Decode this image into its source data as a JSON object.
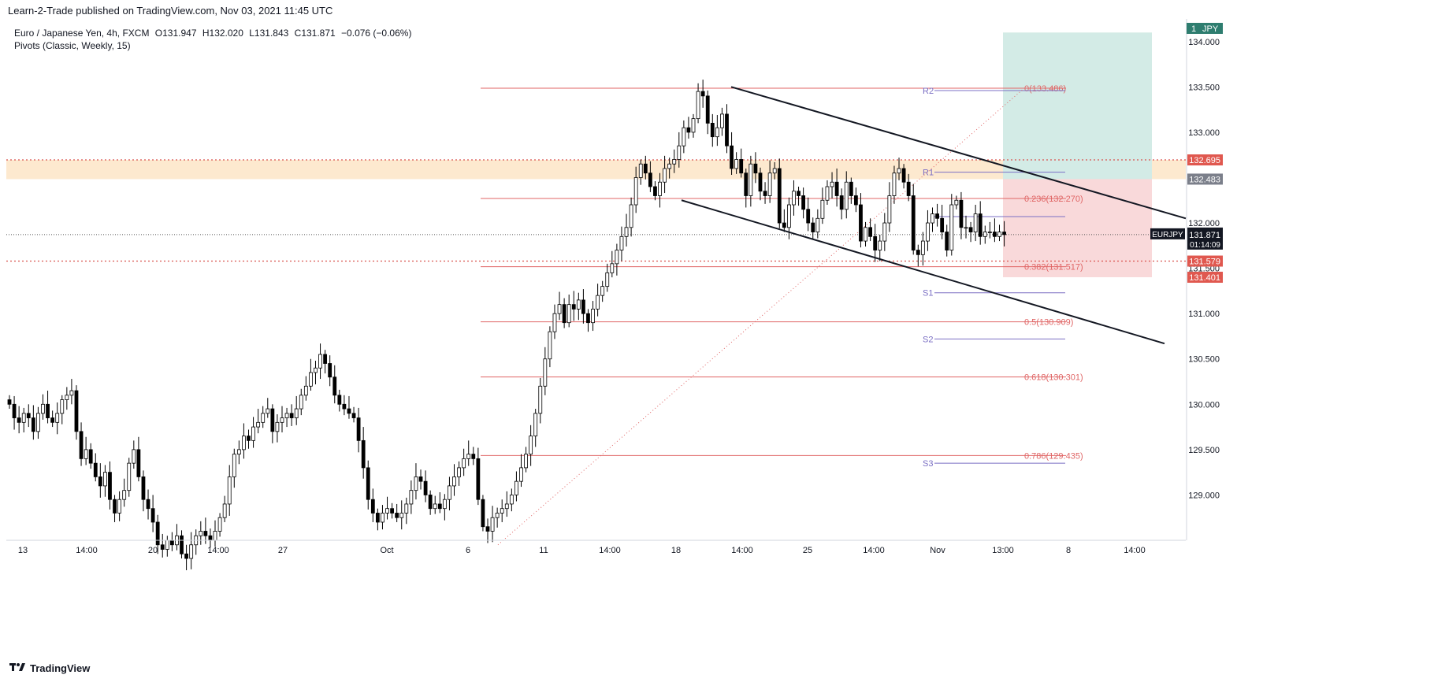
{
  "publisher_line": "Learn-2-Trade published on TradingView.com, Nov 03, 2021 11:45 UTC",
  "legend": {
    "symbol": "Euro / Japanese Yen, 4h, FXCM",
    "o": "O131.947",
    "h": "H132.020",
    "l": "L131.843",
    "c": "C131.871",
    "chg": "−0.076 (−0.06%)",
    "indicator": "Pivots (Classic, Weekly, 15)"
  },
  "brand": {
    "icon": "tradingview-logo-icon",
    "text": "TradingView"
  },
  "colors": {
    "up": "#ffffff",
    "down": "#000000",
    "wick": "#000000",
    "fib": "#e06666",
    "pivot": "#7b6fc4",
    "channel": "#131722",
    "resistance_zone": "#fde9cf",
    "target_zone": "#d3ebe6",
    "stop_zone": "#f9d9da"
  },
  "chart_data": {
    "type": "candlestick",
    "symbol": "EURJPY",
    "timeframe": "4h",
    "ylim": [
      128.5,
      134.25
    ],
    "x_ticks": [
      "13",
      "14:00",
      "20",
      "14:00",
      "27",
      "Oct",
      "6",
      "11",
      "14:00",
      "18",
      "14:00",
      "25",
      "14:00",
      "Nov",
      "13:00",
      "8",
      "14:00"
    ],
    "y_ticks": [
      129.0,
      129.5,
      130.0,
      130.5,
      131.0,
      131.5,
      132.0,
      132.5,
      133.0,
      133.5,
      134.0
    ],
    "y_tick_labels": [
      "129.000",
      "129.500",
      "130.000",
      "130.500",
      "131.000",
      "131.500",
      "132.000",
      "132.500",
      "133.000",
      "133.500",
      "134.000"
    ],
    "closes": [
      130.0,
      129.85,
      129.8,
      129.9,
      129.85,
      129.7,
      129.9,
      130.0,
      129.85,
      129.8,
      129.9,
      130.05,
      130.1,
      130.15,
      129.7,
      129.4,
      129.5,
      129.35,
      129.2,
      129.1,
      129.25,
      128.95,
      128.8,
      128.95,
      129.05,
      129.35,
      129.5,
      129.2,
      128.95,
      128.85,
      128.7,
      128.45,
      128.4,
      128.5,
      128.45,
      128.55,
      128.35,
      128.3,
      128.45,
      128.55,
      128.6,
      128.55,
      128.5,
      128.6,
      128.75,
      128.9,
      129.2,
      129.45,
      129.5,
      129.65,
      129.6,
      129.75,
      129.8,
      129.9,
      129.95,
      129.7,
      129.8,
      129.85,
      129.9,
      129.85,
      129.95,
      130.1,
      130.2,
      130.35,
      130.4,
      130.55,
      130.45,
      130.3,
      130.1,
      130.0,
      129.95,
      129.9,
      129.85,
      129.6,
      129.3,
      128.95,
      128.8,
      128.7,
      128.8,
      128.85,
      128.8,
      128.75,
      128.8,
      128.9,
      129.05,
      129.2,
      129.15,
      129.0,
      128.85,
      128.9,
      128.85,
      128.95,
      129.1,
      129.2,
      129.3,
      129.4,
      129.45,
      129.4,
      128.95,
      128.65,
      128.6,
      128.75,
      128.8,
      128.85,
      128.9,
      129.0,
      129.15,
      129.3,
      129.45,
      129.65,
      129.9,
      130.2,
      130.5,
      130.8,
      131.0,
      131.1,
      130.9,
      131.1,
      131.05,
      131.15,
      131.0,
      130.9,
      131.05,
      131.2,
      131.3,
      131.45,
      131.55,
      131.7,
      131.85,
      131.95,
      132.2,
      132.5,
      132.65,
      132.55,
      132.4,
      132.3,
      132.45,
      132.6,
      132.65,
      132.7,
      132.85,
      133.05,
      133.0,
      133.15,
      133.45,
      133.4,
      133.1,
      132.95,
      133.05,
      133.2,
      132.85,
      132.6,
      132.7,
      132.55,
      132.3,
      132.65,
      132.55,
      132.35,
      132.3,
      132.55,
      132.6,
      132.0,
      131.95,
      132.2,
      132.35,
      132.3,
      132.15,
      132.0,
      131.9,
      132.05,
      132.25,
      132.4,
      132.45,
      132.3,
      132.15,
      132.45,
      132.3,
      132.2,
      131.8,
      131.95,
      131.85,
      131.7,
      131.8,
      132.0,
      132.3,
      132.55,
      132.6,
      132.45,
      132.3,
      131.7,
      131.65,
      131.8,
      132.0,
      132.1,
      132.05,
      131.9,
      131.7,
      132.2,
      132.25,
      131.95,
      131.95,
      131.9,
      132.1,
      131.85,
      131.9,
      131.9,
      131.85,
      131.9,
      131.871
    ]
  },
  "price_labels": {
    "zone_top": "132.695",
    "zone_bottom": "132.483",
    "current_price": "131.871",
    "current_symbol": "EURJPY",
    "countdown": "01:14:09",
    "stop_line": "131.579",
    "stop_zone": "131.401",
    "tag_symbol": "JPY",
    "tag_value": "1"
  },
  "fib_levels": [
    {
      "label": "0(133.486)",
      "price": 133.486
    },
    {
      "label": "0.236(132.270)",
      "price": 132.27
    },
    {
      "label": "0.382(131.517)",
      "price": 131.517
    },
    {
      "label": "0.5(130.909)",
      "price": 130.909
    },
    {
      "label": "0.618(130.301)",
      "price": 130.301
    },
    {
      "label": "0.786(129.435)",
      "price": 129.435
    }
  ],
  "pivots": [
    {
      "label": "R2",
      "price": 133.46
    },
    {
      "label": "R1",
      "price": 132.56
    },
    {
      "label": "",
      "price": 132.07
    },
    {
      "label": "S1",
      "price": 131.23
    },
    {
      "label": "S2",
      "price": 130.72
    },
    {
      "label": "S3",
      "price": 129.35
    }
  ],
  "zones": {
    "resistance": {
      "high": 132.695,
      "low": 132.483
    },
    "target": {
      "high": 134.1,
      "low": 132.483
    },
    "stop": {
      "high": 132.483,
      "low": 131.401
    }
  }
}
